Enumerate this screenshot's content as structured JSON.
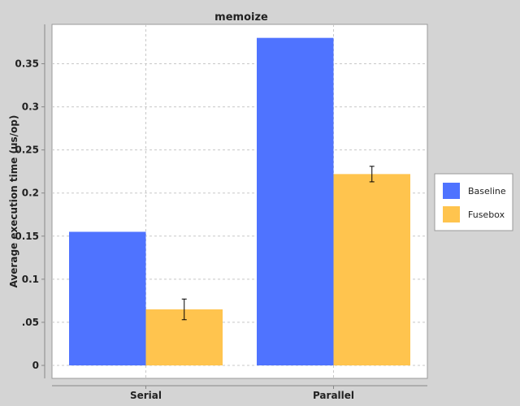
{
  "chart_data": {
    "type": "bar",
    "title": "memoize",
    "xlabel": "",
    "ylabel": "Average execution time (us/op)",
    "categories": [
      "Serial",
      "Parallel"
    ],
    "series": [
      {
        "name": "Baseline",
        "color": "#4f73ff",
        "values": [
          0.155,
          0.38
        ],
        "errors": [
          null,
          null
        ]
      },
      {
        "name": "Fusebox",
        "color": "#ffc44e",
        "values": [
          0.065,
          0.222
        ],
        "errors": [
          0.012,
          0.009
        ]
      }
    ],
    "ylim": [
      0,
      0.39
    ],
    "yticks": [
      {
        "value": 0,
        "label": "0"
      },
      {
        "value": 0.05,
        "label": ".05"
      },
      {
        "value": 0.1,
        "label": "0.1"
      },
      {
        "value": 0.15,
        "label": "0.15"
      },
      {
        "value": 0.2,
        "label": "0.2"
      },
      {
        "value": 0.25,
        "label": "0.25"
      },
      {
        "value": 0.3,
        "label": "0.3"
      },
      {
        "value": 0.35,
        "label": "0.35"
      }
    ],
    "grid": true,
    "legend_position": "right"
  }
}
